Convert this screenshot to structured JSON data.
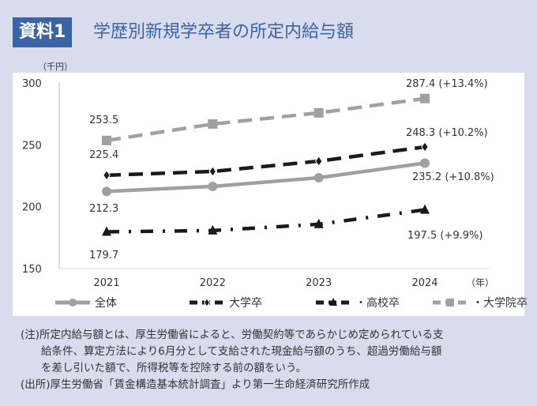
{
  "header": {
    "badge": "資料1",
    "title": "学歴別新規学卒者の所定内給与額"
  },
  "chart_data": {
    "type": "line",
    "title": "学歴別新規学卒者の所定内給与額",
    "ylabel": "（千円）",
    "xlabel": "（年）",
    "ylim": [
      150,
      300
    ],
    "yticks": [
      150,
      200,
      250,
      300
    ],
    "categories": [
      "2021",
      "2022",
      "2023",
      "2024"
    ],
    "legend_position": "bottom",
    "series": [
      {
        "name": "全体",
        "values": [
          212.3,
          216.4,
          223.4,
          235.2
        ],
        "color": "#a0a0a0",
        "marker": "circle",
        "dash": "solid",
        "labels": [
          "212.3",
          "235.2 (+10.8%)"
        ]
      },
      {
        "name": "大学卒",
        "values": [
          225.4,
          228.5,
          236.8,
          248.3
        ],
        "color": "#1a1a1a",
        "marker": "diamond",
        "dash": "dash",
        "labels": [
          "225.4",
          "248.3 (+10.2%)"
        ]
      },
      {
        "name": "・高校卒",
        "values": [
          179.7,
          180.7,
          185.8,
          197.5
        ],
        "color": "#1a1a1a",
        "marker": "triangle",
        "dash": "dashdot",
        "labels": [
          "179.7",
          "197.5 (+9.9%)"
        ]
      },
      {
        "name": "・大学院卒",
        "values": [
          253.5,
          266.8,
          275.8,
          287.4
        ],
        "color": "#a0a0a0",
        "marker": "square",
        "dash": "dash",
        "labels": [
          "253.5",
          "287.4 (+13.4%)"
        ]
      }
    ]
  },
  "notes": {
    "note1": "(注)所定内給与額とは、厚生労働省によると、労働契約等であらかじめ定められている支",
    "note2": "給条件、算定方法により6月分として支給された現金給与額のうち、超過労働給与額",
    "note3": "を差し引いた額で、所得税等を控除する前の額をいう。",
    "source": "(出所)厚生労働省「賃金構造基本統計調査」より第一生命経済研究所作成"
  }
}
